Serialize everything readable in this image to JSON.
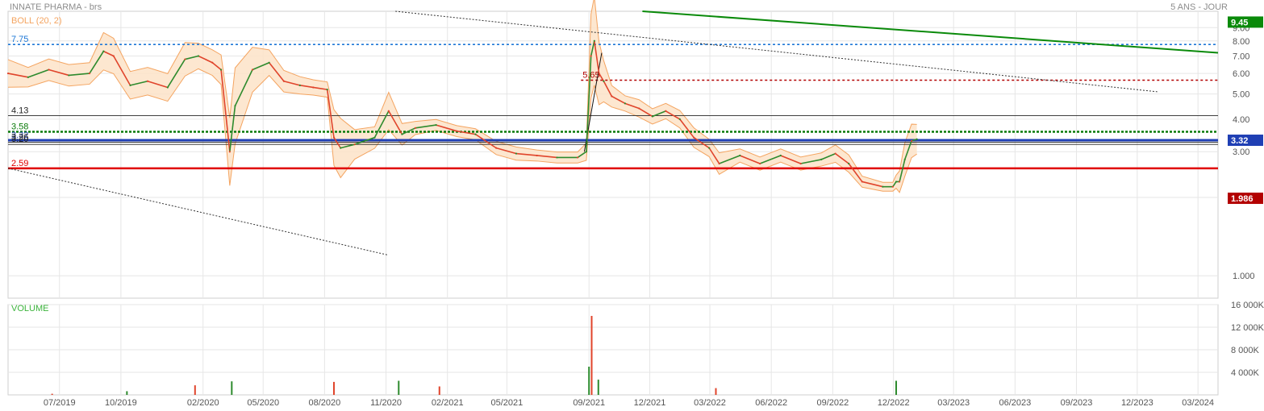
{
  "header": {
    "title": "INNATE PHARMA - brs",
    "period": "5 ANS - JOUR"
  },
  "colors": {
    "price_up": "#2e8b2e",
    "price_down": "#e0442b",
    "bollinger_band": "#f4a460",
    "bollinger_fill": "#fde3c8",
    "blue_line": "#1f3fb4",
    "red_line": "#e00000",
    "green_trend": "#0a8a0a",
    "dotted_blue": "#1f78d6",
    "dotted_red": "#b30000",
    "dotted_green": "#0a7a0a",
    "volume_label": "#3cb43c",
    "grid": "#e6e6e6"
  },
  "chart_data": [
    {
      "type": "line",
      "name": "price",
      "indicator_label": "BOLL (20, 2)",
      "y_scale": "log",
      "ylim": [
        0.82,
        10.4
      ],
      "y_ticks": [
        "1.000",
        "2.00",
        "3.00",
        "4.00",
        "5.00",
        "6.00",
        "7.00",
        "8.00",
        "9.00"
      ],
      "y_tick_values": [
        1,
        2,
        3,
        4,
        5,
        6,
        7,
        8,
        9
      ],
      "x_ticks": [
        "07/2019",
        "10/2019",
        "02/2020",
        "05/2020",
        "08/2020",
        "11/2020",
        "02/2021",
        "05/2021",
        "09/2021",
        "12/2021",
        "03/2022",
        "06/2022",
        "09/2022",
        "12/2022",
        "03/2023",
        "06/2023",
        "09/2023",
        "12/2023",
        "03/2024"
      ],
      "x_tick_dates": [
        "2019-07-01",
        "2019-10-01",
        "2020-02-01",
        "2020-05-01",
        "2020-08-01",
        "2020-11-01",
        "2021-02-01",
        "2021-05-01",
        "2021-09-01",
        "2021-12-01",
        "2022-03-01",
        "2022-06-01",
        "2022-09-01",
        "2022-12-01",
        "2023-03-01",
        "2023-06-01",
        "2023-09-01",
        "2023-12-01",
        "2024-03-01"
      ],
      "x_range": [
        "2019-04-15",
        "2024-03-31"
      ],
      "grid": true,
      "series": [
        {
          "dates": [
            "2019-04-15",
            "2019-05-15",
            "2019-06-15",
            "2019-07-15",
            "2019-08-15",
            "2019-09-05",
            "2019-09-20",
            "2019-10-15",
            "2019-11-10",
            "2019-12-10",
            "2020-01-05",
            "2020-01-25",
            "2020-02-15",
            "2020-02-28",
            "2020-03-12",
            "2020-03-20",
            "2020-04-15",
            "2020-05-10",
            "2020-06-01",
            "2020-06-25",
            "2020-07-15",
            "2020-08-05",
            "2020-08-15",
            "2020-08-25",
            "2020-09-15",
            "2020-10-15",
            "2020-11-05",
            "2020-11-25",
            "2020-12-15",
            "2021-01-15",
            "2021-02-15",
            "2021-03-15",
            "2021-04-15",
            "2021-05-15",
            "2021-06-15",
            "2021-07-15",
            "2021-08-15",
            "2021-08-28",
            "2021-09-04",
            "2021-09-09",
            "2021-09-16",
            "2021-09-23",
            "2021-10-05",
            "2021-10-25",
            "2021-11-15",
            "2021-12-05",
            "2021-12-25",
            "2022-01-15",
            "2022-02-05",
            "2022-02-28",
            "2022-03-15",
            "2022-04-15",
            "2022-05-15",
            "2022-06-15",
            "2022-07-15",
            "2022-08-15",
            "2022-09-05",
            "2022-09-25",
            "2022-10-15",
            "2022-11-15",
            "2022-11-30",
            "2022-12-05",
            "2022-12-10",
            "2022-12-18",
            "2022-12-28",
            "2023-01-05"
          ],
          "values": [
            6.0,
            5.8,
            6.2,
            5.9,
            6.0,
            7.3,
            7.0,
            5.4,
            5.6,
            5.3,
            6.8,
            7.0,
            6.6,
            6.2,
            3.0,
            4.5,
            6.2,
            6.6,
            5.6,
            5.4,
            5.3,
            5.2,
            3.4,
            3.1,
            3.2,
            3.4,
            4.3,
            3.5,
            3.7,
            3.8,
            3.6,
            3.5,
            3.1,
            2.95,
            2.9,
            2.85,
            2.85,
            3.0,
            7.0,
            8.0,
            6.0,
            5.6,
            4.9,
            4.6,
            4.4,
            4.1,
            4.3,
            4.0,
            3.4,
            3.1,
            2.7,
            2.9,
            2.7,
            2.9,
            2.7,
            2.8,
            2.95,
            2.7,
            2.3,
            2.2,
            2.2,
            2.3,
            2.3,
            2.8,
            3.3,
            3.35
          ]
        }
      ],
      "bollinger_width": [
        0.13,
        0.09,
        0.1,
        0.1,
        0.1,
        0.18,
        0.17,
        0.13,
        0.13,
        0.13,
        0.16,
        0.12,
        0.12,
        0.14,
        0.35,
        0.4,
        0.22,
        0.12,
        0.1,
        0.08,
        0.07,
        0.07,
        0.28,
        0.3,
        0.14,
        0.1,
        0.18,
        0.1,
        0.06,
        0.05,
        0.05,
        0.05,
        0.06,
        0.06,
        0.05,
        0.05,
        0.05,
        0.08,
        0.45,
        0.48,
        0.32,
        0.2,
        0.1,
        0.07,
        0.08,
        0.07,
        0.07,
        0.08,
        0.09,
        0.08,
        0.1,
        0.06,
        0.06,
        0.06,
        0.06,
        0.06,
        0.08,
        0.08,
        0.05,
        0.04,
        0.04,
        0.06,
        0.1,
        0.16,
        0.16,
        0.14
      ],
      "horizontal_levels": [
        {
          "value": 7.75,
          "label": "7.75",
          "style": "dotted-blue"
        },
        {
          "value": 5.65,
          "label": "5.65",
          "style": "dotted-red"
        },
        {
          "value": 4.13,
          "label": "4.13",
          "style": "thin-black"
        },
        {
          "value": 3.58,
          "label": "3.58",
          "style": "dotted-green"
        },
        {
          "value": 3.32,
          "label": "3.32",
          "style": "thick-blue"
        },
        {
          "value": 3.26,
          "label": "3.26",
          "style": "thin-black"
        },
        {
          "value": 3.2,
          "label": "3.20",
          "style": "thin-black"
        },
        {
          "value": 2.59,
          "label": "2.59",
          "style": "thick-red"
        }
      ],
      "price_tags": [
        {
          "value": 9.45,
          "label": "9.45",
          "color": "#0a8a0a"
        },
        {
          "value": 3.32,
          "label": "3.32",
          "color": "#1f3fb4"
        },
        {
          "value": 1.986,
          "label": "1.986",
          "color": "#b30000"
        }
      ],
      "trend_lines": [
        {
          "from": [
            "2020-11-15",
            10.4
          ],
          "to": [
            "2023-12-31",
            5.1
          ],
          "style": "dotted-black"
        },
        {
          "from": [
            "2019-04-15",
            2.59
          ],
          "to": [
            "2020-11-05",
            1.2
          ],
          "style": "dotted-black"
        },
        {
          "from": [
            "2021-11-20",
            10.4
          ],
          "to": [
            "2024-03-31",
            7.2
          ],
          "style": "solid-green"
        },
        {
          "from": [
            "2021-08-25",
            3.0
          ],
          "to": [
            "2021-09-20",
            7.2
          ],
          "style": "solid-black"
        }
      ]
    },
    {
      "type": "bar",
      "name": "volume",
      "label": "VOLUME",
      "ylim": [
        0,
        16000
      ],
      "y_ticks": [
        "4 000K",
        "8 000K",
        "12 000K",
        "16 000K"
      ],
      "y_tick_values": [
        4000,
        8000,
        12000,
        16000
      ],
      "spikes": [
        {
          "date": "2019-06-20",
          "value": 200
        },
        {
          "date": "2019-10-10",
          "value": 650
        },
        {
          "date": "2020-01-20",
          "value": 1700
        },
        {
          "date": "2020-03-15",
          "value": 2400
        },
        {
          "date": "2020-08-15",
          "value": 2300
        },
        {
          "date": "2020-11-20",
          "value": 2500
        },
        {
          "date": "2021-01-20",
          "value": 1500
        },
        {
          "date": "2021-09-01",
          "value": 5000
        },
        {
          "date": "2021-09-05",
          "value": 14000
        },
        {
          "date": "2021-09-15",
          "value": 2700
        },
        {
          "date": "2022-03-10",
          "value": 1200
        },
        {
          "date": "2022-12-05",
          "value": 2500
        }
      ]
    }
  ]
}
